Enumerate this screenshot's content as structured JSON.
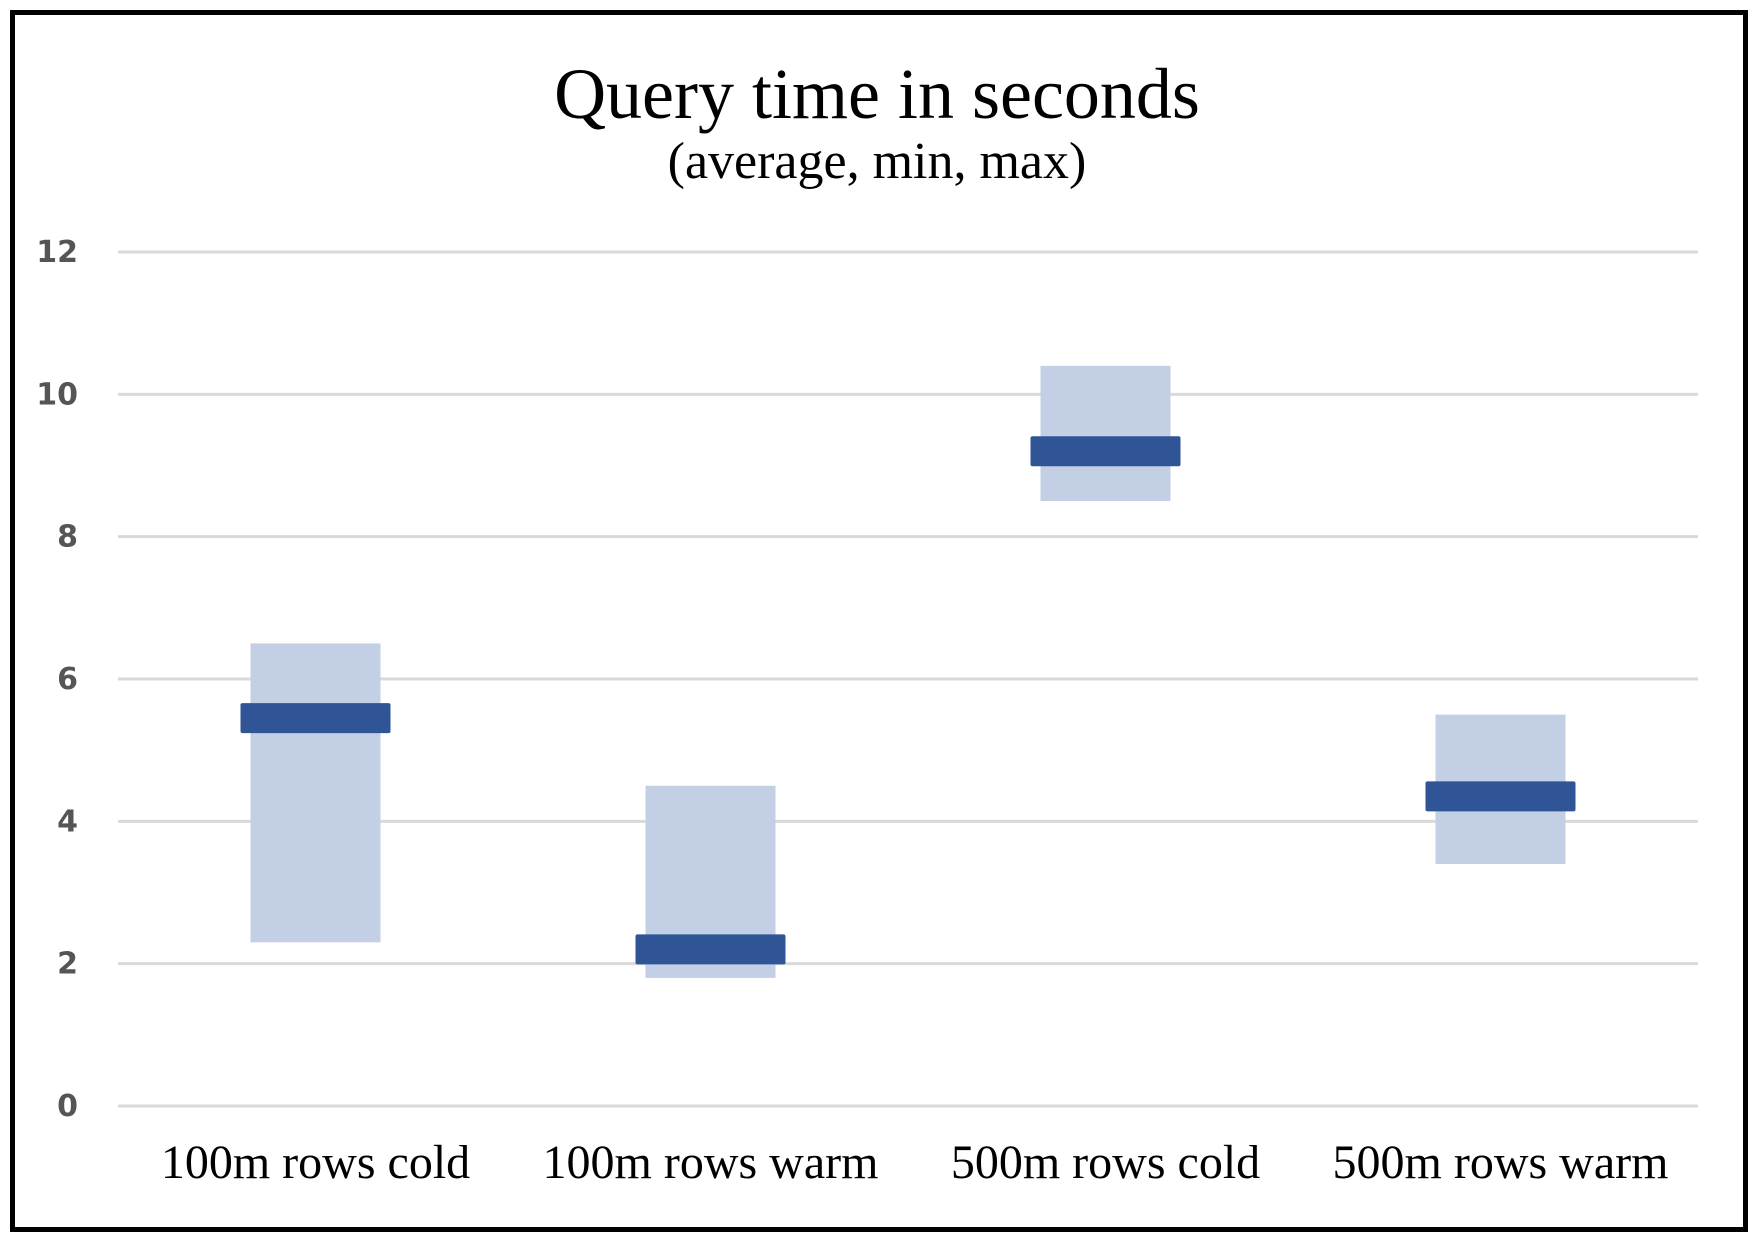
{
  "chart_data": {
    "type": "bar",
    "title": "Query time in seconds",
    "subtitle": "(average, min, max)",
    "categories": [
      "100m rows cold",
      "100m rows warm",
      "500m rows cold",
      "500m rows warm"
    ],
    "series": [
      {
        "name": "min",
        "values": [
          2.3,
          1.8,
          8.5,
          3.4
        ]
      },
      {
        "name": "max",
        "values": [
          6.5,
          4.5,
          10.4,
          5.5
        ]
      },
      {
        "name": "average",
        "values": [
          5.45,
          2.2,
          9.2,
          4.35
        ]
      }
    ],
    "yticks": [
      "0",
      "2",
      "4",
      "6",
      "8",
      "10",
      "12"
    ],
    "ylim": [
      0,
      12
    ],
    "grid": true,
    "colors": {
      "range": "#c3cfe5",
      "average": "#2f5597",
      "grid": "#d9d9d9",
      "frame": "#000000"
    }
  }
}
